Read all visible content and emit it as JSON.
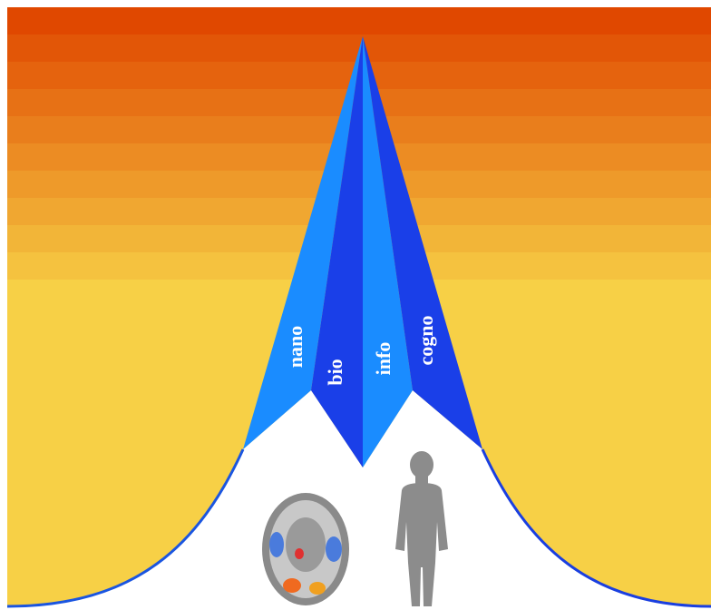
{
  "labels": [
    "nano",
    "bio",
    "info",
    "cogno"
  ]
}
